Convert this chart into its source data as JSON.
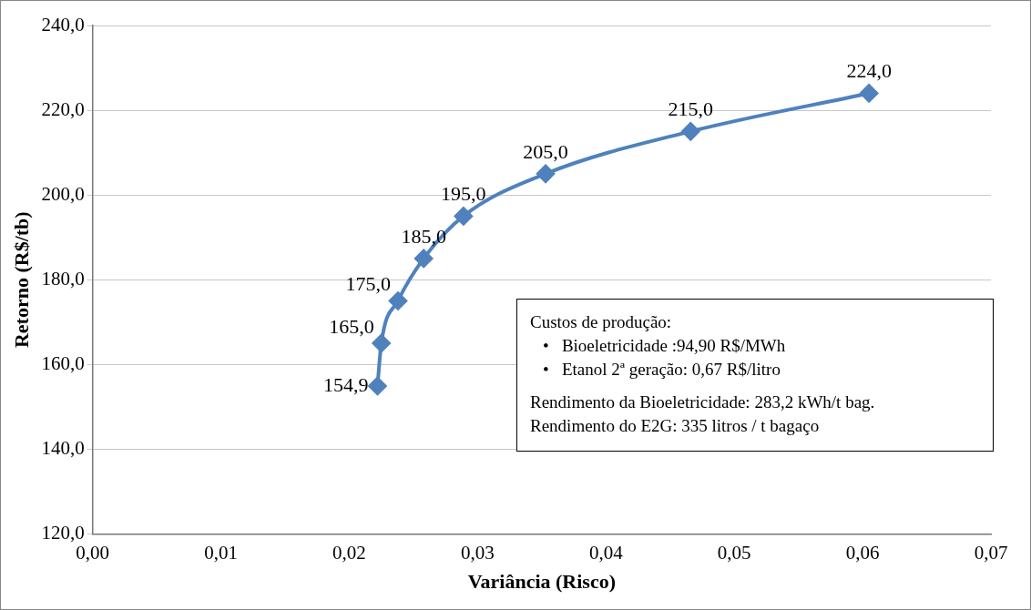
{
  "chart_data": {
    "type": "line",
    "xlabel": "Variância (Risco)",
    "ylabel": "Retorno (R$/tb)",
    "x": [
      0.0222,
      0.0225,
      0.0238,
      0.0258,
      0.0289,
      0.0353,
      0.0466,
      0.0605
    ],
    "series": [
      {
        "color": "#4f81bd",
        "values": [
          154.9,
          165.0,
          175.0,
          185.0,
          195.0,
          205.0,
          215.0,
          224.0
        ],
        "value_labels": [
          "154,9",
          "165,0",
          "175,0",
          "185,0",
          "195,0",
          "205,0",
          "215,0",
          "224,0"
        ]
      }
    ],
    "xlim": [
      0,
      0.07
    ],
    "xticks": [
      {
        "value": 0,
        "label": "0,00"
      },
      {
        "value": 0.01,
        "label": "0,01"
      },
      {
        "value": 0.02,
        "label": "0,02"
      },
      {
        "value": 0.03,
        "label": "0,03"
      },
      {
        "value": 0.04,
        "label": "0,04"
      },
      {
        "value": 0.05,
        "label": "0,05"
      },
      {
        "value": 0.06,
        "label": "0,06"
      },
      {
        "value": 0.07,
        "label": "0,07"
      }
    ],
    "ylim": [
      120,
      240
    ],
    "yticks": [
      {
        "value": 120,
        "label": "120,0"
      },
      {
        "value": 140,
        "label": "140,0"
      },
      {
        "value": 160,
        "label": "160,0"
      },
      {
        "value": 180,
        "label": "180,0"
      },
      {
        "value": 200,
        "label": "200,0"
      },
      {
        "value": 220,
        "label": "220,0"
      },
      {
        "value": 240,
        "label": "240,0"
      }
    ],
    "grid": "y",
    "legend": false,
    "marker": "diamond",
    "line_style": "solid",
    "annotations": [
      "Custos de produção:",
      "•   Bioeletricidade :94,90 R$/MWh",
      "•   Etanol 2ª geração: 0,67 R$/litro",
      "Rendimento da Bioeletricidade: 283,2 kWh/t bag.",
      "Rendimento do E2G: 335 litros / t bagaço"
    ]
  }
}
